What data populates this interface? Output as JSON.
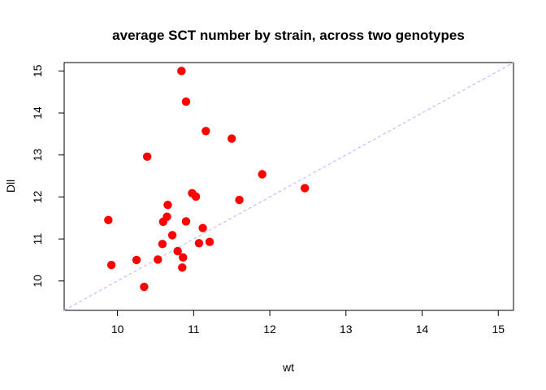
{
  "chart_data": {
    "type": "scatter",
    "title": "average SCT number by strain, across two genotypes",
    "xlabel": "wt",
    "ylabel": "Dll",
    "xlim": [
      9.3,
      15.2
    ],
    "ylim": [
      9.3,
      15.2
    ],
    "xticks": [
      10,
      11,
      12,
      13,
      14,
      15
    ],
    "yticks": [
      10,
      11,
      12,
      13,
      14,
      15
    ],
    "grid": false,
    "reference_line": {
      "type": "identity",
      "slope": 1,
      "intercept": 0,
      "style": "dashed",
      "color": "#b3b3ff"
    },
    "point_color": "#ff0000",
    "points": [
      {
        "x": 9.88,
        "y": 11.45
      },
      {
        "x": 9.92,
        "y": 10.38
      },
      {
        "x": 10.25,
        "y": 10.5
      },
      {
        "x": 10.35,
        "y": 9.86
      },
      {
        "x": 10.39,
        "y": 12.96
      },
      {
        "x": 10.53,
        "y": 10.51
      },
      {
        "x": 10.59,
        "y": 10.88
      },
      {
        "x": 10.6,
        "y": 11.41
      },
      {
        "x": 10.65,
        "y": 11.53
      },
      {
        "x": 10.66,
        "y": 11.81
      },
      {
        "x": 10.72,
        "y": 11.09
      },
      {
        "x": 10.79,
        "y": 10.71
      },
      {
        "x": 10.84,
        "y": 15.0
      },
      {
        "x": 10.85,
        "y": 10.32
      },
      {
        "x": 10.86,
        "y": 10.56
      },
      {
        "x": 10.9,
        "y": 14.27
      },
      {
        "x": 10.9,
        "y": 11.42
      },
      {
        "x": 10.98,
        "y": 12.09
      },
      {
        "x": 11.03,
        "y": 12.01
      },
      {
        "x": 11.07,
        "y": 10.9
      },
      {
        "x": 11.12,
        "y": 11.26
      },
      {
        "x": 11.16,
        "y": 13.57
      },
      {
        "x": 11.21,
        "y": 10.93
      },
      {
        "x": 11.5,
        "y": 13.39
      },
      {
        "x": 11.6,
        "y": 11.93
      },
      {
        "x": 11.9,
        "y": 12.54
      },
      {
        "x": 12.46,
        "y": 12.21
      }
    ]
  }
}
